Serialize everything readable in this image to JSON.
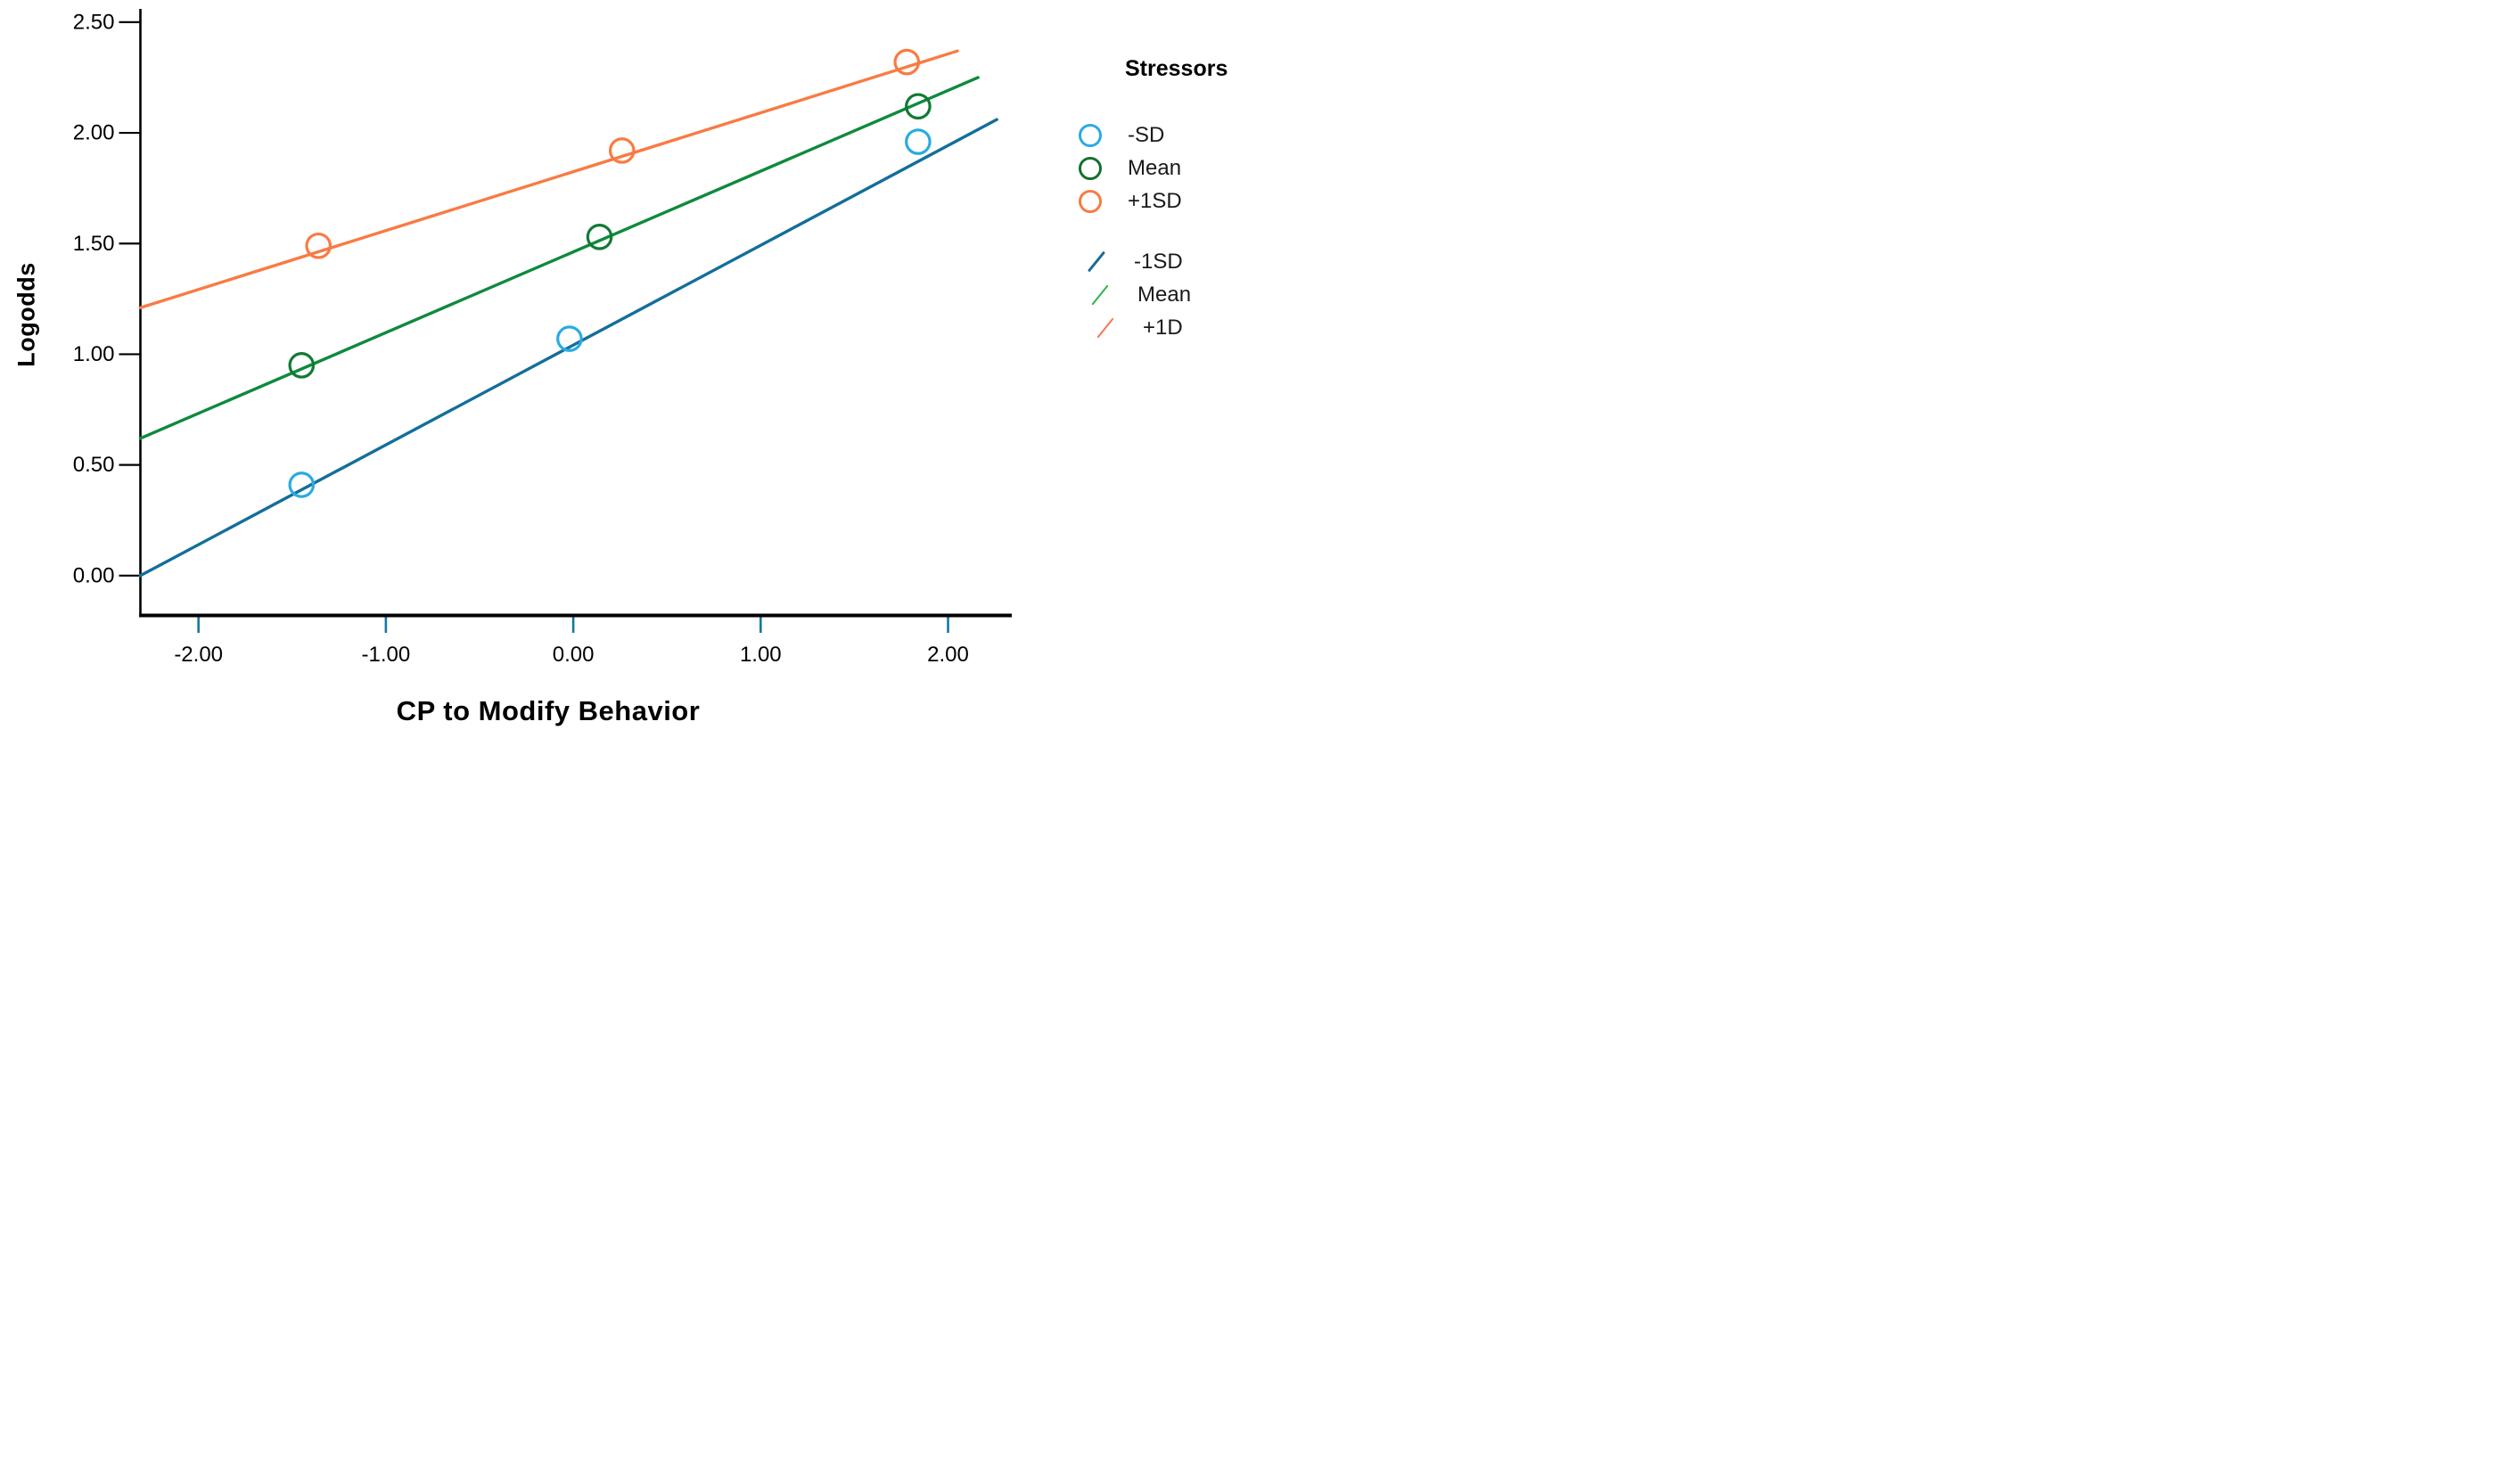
{
  "chart_data": {
    "type": "scatter",
    "title": "",
    "xlabel": "CP to Modify Behavior",
    "ylabel": "Logodds",
    "xlim": [
      -2.31,
      2.34
    ],
    "ylim": [
      -0.18,
      2.56
    ],
    "grid": false,
    "legend_position": "right",
    "x_ticks": {
      "values": [
        -2,
        -1,
        0,
        1,
        2
      ],
      "labels": [
        "-2.00",
        "-1.00",
        "0.00",
        "1.00",
        "2.00"
      ]
    },
    "y_ticks": {
      "values": [
        0,
        0.5,
        1,
        1.5,
        2,
        2.5
      ],
      "labels": [
        "0.00",
        "0.50",
        "1.00",
        "1.50",
        "2.00",
        "2.50"
      ]
    },
    "point_series": [
      {
        "name": "-SD",
        "color": "#29ABE2",
        "points": [
          [
            -1.45,
            0.41
          ],
          [
            -0.02,
            1.07
          ],
          [
            1.84,
            1.96
          ]
        ]
      },
      {
        "name": "Mean",
        "color": "#117A35",
        "points": [
          [
            -1.45,
            0.95
          ],
          [
            0.14,
            1.53
          ],
          [
            1.84,
            2.12
          ]
        ]
      },
      {
        "name": "+1SD",
        "color": "#F87B43",
        "points": [
          [
            -1.36,
            1.49
          ],
          [
            0.26,
            1.92
          ],
          [
            1.78,
            2.32
          ]
        ]
      }
    ],
    "line_series": [
      {
        "name": "-1SD",
        "color": "#136E9B",
        "x1": -2.31,
        "y1": 0.0,
        "x2": 2.26,
        "y2": 2.06
      },
      {
        "name": "Mean",
        "color": "#0E8A3C",
        "x1": -2.31,
        "y1": 0.62,
        "x2": 2.16,
        "y2": 2.25
      },
      {
        "name": "+1D",
        "color": "#F87B43",
        "x1": -2.31,
        "y1": 1.21,
        "x2": 2.05,
        "y2": 2.37
      }
    ],
    "x_tick_color": "#1478A5",
    "axis_color": "#000000"
  },
  "legend": {
    "title": "Stressors",
    "point_items": [
      {
        "label": "-SD",
        "color": "#29ABE2"
      },
      {
        "label": "Mean",
        "color": "#156F2F"
      },
      {
        "label": "+1SD",
        "color": "#F87B43"
      }
    ],
    "line_items": [
      {
        "label": "-1SD",
        "color": "#1B6C96"
      },
      {
        "label": "Mean",
        "color": "#2DB34A"
      },
      {
        "label": "+1D",
        "color": "#FA7450"
      }
    ]
  }
}
